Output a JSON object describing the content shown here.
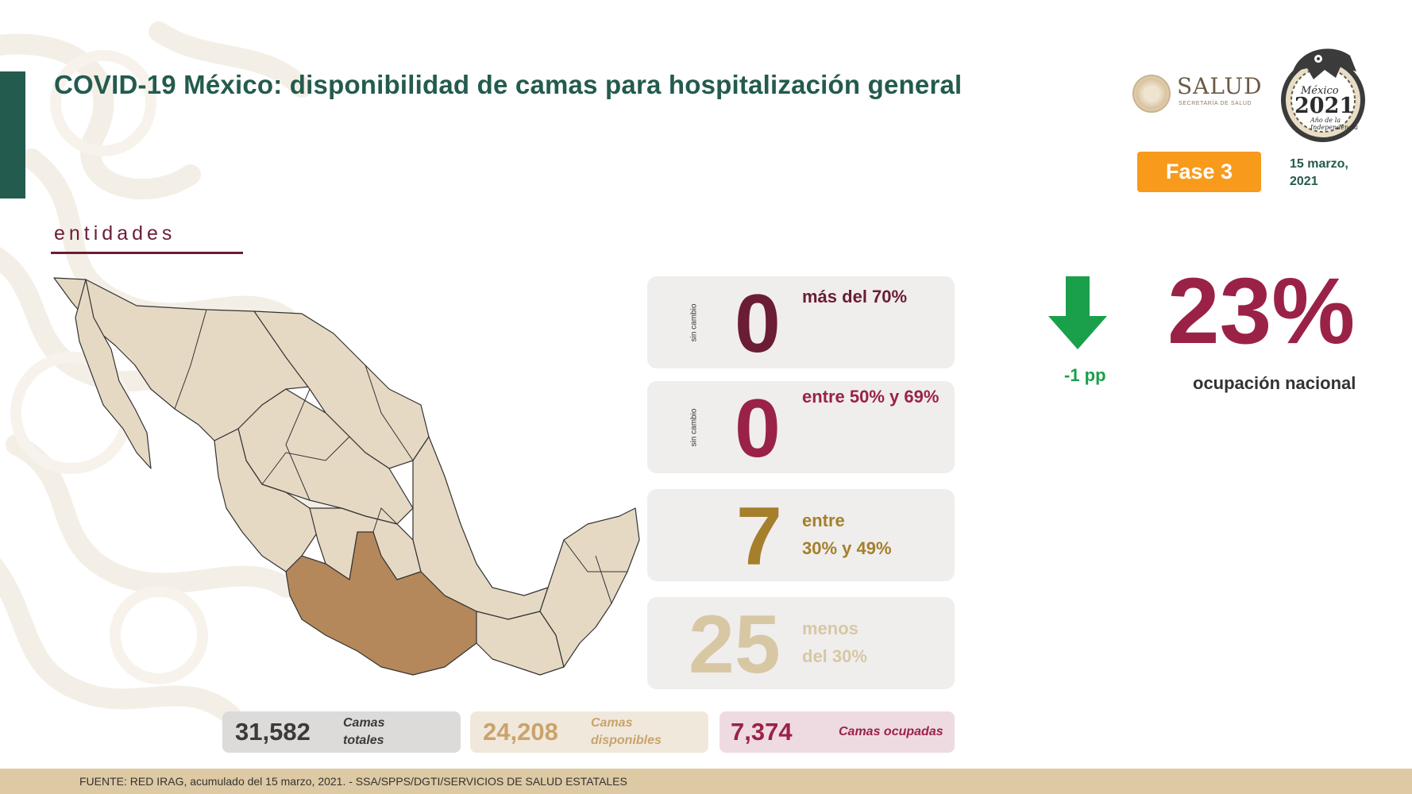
{
  "header": {
    "title": "COVID-19 México: disponibilidad de camas para hospitalización general",
    "phase_label": "Fase 3",
    "date": "15 marzo, 2021",
    "logo_salud": {
      "word": "SALUD",
      "sub": "SECRETARÍA DE SALUD"
    },
    "logo_2021": {
      "line1": "México",
      "line2": "2021",
      "line3": "Año de la Independencia"
    }
  },
  "section_label": "entidades",
  "colors": {
    "green": "#235b4e",
    "maroon_dark": "#6b1d35",
    "maroon": "#9b2247",
    "gold": "#a57f2c",
    "beige": "#d8c7a3",
    "map_fill": "#e6d9c4",
    "map_highlight": "#b4885a",
    "orange": "#f89a1c",
    "arrow_green": "#1aa04b"
  },
  "categories": [
    {
      "count": "0",
      "label_line1": "más del 70%",
      "label_line2": "",
      "change": "sin cambio",
      "color": "#6b1d35"
    },
    {
      "count": "0",
      "label_line1": "entre 50% y 69%",
      "label_line2": "",
      "change": "sin cambio",
      "color": "#9b2247"
    },
    {
      "count": "7",
      "label_line1": "entre",
      "label_line2": "30% y 49%",
      "change": "",
      "color": "#a57f2c"
    },
    {
      "count": "25",
      "label_line1": "menos",
      "label_line2": "del 30%",
      "change": "",
      "color": "#d8c7a3"
    }
  ],
  "national": {
    "change_label": "-1 pp",
    "change_icon": "arrow-down-icon",
    "occupancy": "23%",
    "occupancy_label": "ocupación nacional"
  },
  "beds": {
    "total_value": "31,582",
    "total_label_1": "Camas",
    "total_label_2": "totales",
    "available_value": "24,208",
    "available_label_1": "Camas",
    "available_label_2": "disponibles",
    "occupied_value": "7,374",
    "occupied_label": "Camas ocupadas"
  },
  "footer": "FUENTE: RED IRAG, acumulado del 15 marzo, 2021. -  SSA/SPPS/DGTI/SERVICIOS DE SALUD ESTATALES"
}
